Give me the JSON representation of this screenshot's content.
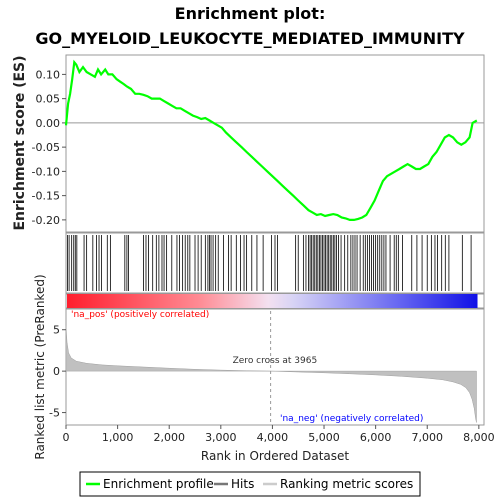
{
  "title_line1": "Enrichment plot:",
  "title_line2": "GO_MYELOID_LEUKOCYTE_MEDIATED_IMMUNITY",
  "chart_data": [
    {
      "type": "line",
      "name": "enrichment-profile",
      "ylabel": "Enrichment score (ES)",
      "xlim": [
        0,
        8100
      ],
      "ylim": [
        -0.225,
        0.14
      ],
      "yticks": [
        "0.10",
        "0.05",
        "0.00",
        "-0.05",
        "-0.10",
        "-0.15",
        "-0.20"
      ],
      "ytick_values": [
        0.1,
        0.05,
        0.0,
        -0.05,
        -0.1,
        -0.15,
        -0.2
      ],
      "series": [
        {
          "name": "Enrichment profile",
          "color": "#00ff00",
          "x": [
            0,
            40,
            80,
            120,
            160,
            200,
            260,
            330,
            400,
            480,
            560,
            620,
            680,
            760,
            820,
            900,
            980,
            1050,
            1120,
            1180,
            1260,
            1340,
            1420,
            1500,
            1580,
            1660,
            1740,
            1820,
            1900,
            1980,
            2060,
            2140,
            2220,
            2300,
            2380,
            2460,
            2540,
            2620,
            2700,
            2780,
            2860,
            2940,
            3020,
            3100,
            3200,
            3300,
            3400,
            3500,
            3600,
            3700,
            3800,
            3900,
            4000,
            4100,
            4200,
            4300,
            4400,
            4500,
            4600,
            4700,
            4780,
            4860,
            4940,
            5020,
            5100,
            5180,
            5260,
            5340,
            5420,
            5500,
            5580,
            5660,
            5740,
            5820,
            5900,
            5980,
            6060,
            6140,
            6220,
            6300,
            6380,
            6460,
            6540,
            6620,
            6700,
            6780,
            6860,
            6940,
            7020,
            7100,
            7180,
            7260,
            7340,
            7420,
            7500,
            7580,
            7660,
            7740,
            7820,
            7880,
            7960
          ],
          "y": [
            -0.005,
            0.04,
            0.06,
            0.09,
            0.125,
            0.12,
            0.105,
            0.115,
            0.105,
            0.1,
            0.095,
            0.11,
            0.1,
            0.11,
            0.1,
            0.1,
            0.09,
            0.085,
            0.08,
            0.075,
            0.07,
            0.06,
            0.06,
            0.058,
            0.055,
            0.05,
            0.05,
            0.05,
            0.045,
            0.04,
            0.035,
            0.03,
            0.03,
            0.025,
            0.02,
            0.015,
            0.012,
            0.008,
            0.01,
            0.005,
            0.0,
            -0.005,
            -0.01,
            -0.02,
            -0.03,
            -0.04,
            -0.05,
            -0.06,
            -0.07,
            -0.08,
            -0.09,
            -0.1,
            -0.11,
            -0.12,
            -0.13,
            -0.14,
            -0.15,
            -0.16,
            -0.17,
            -0.18,
            -0.185,
            -0.19,
            -0.188,
            -0.192,
            -0.19,
            -0.188,
            -0.19,
            -0.195,
            -0.197,
            -0.2,
            -0.2,
            -0.198,
            -0.195,
            -0.19,
            -0.175,
            -0.16,
            -0.14,
            -0.12,
            -0.11,
            -0.105,
            -0.1,
            -0.095,
            -0.09,
            -0.085,
            -0.09,
            -0.095,
            -0.095,
            -0.09,
            -0.085,
            -0.07,
            -0.06,
            -0.045,
            -0.03,
            -0.025,
            -0.03,
            -0.04,
            -0.045,
            -0.04,
            -0.03,
            0.0,
            0.005
          ]
        }
      ]
    },
    {
      "type": "area",
      "name": "ranked-metric",
      "xlabel": "Rank in Ordered Dataset",
      "ylabel": "Ranked list metric (PreRanked)",
      "xlim": [
        0,
        8100
      ],
      "ylim": [
        -6.5,
        7.5
      ],
      "xticks": [
        "0",
        "1,000",
        "2,000",
        "3,000",
        "4,000",
        "5,000",
        "6,000",
        "7,000",
        "8,000"
      ],
      "xtick_values": [
        0,
        1000,
        2000,
        3000,
        4000,
        5000,
        6000,
        7000,
        8000
      ],
      "yticks": [
        "5",
        "0",
        "-5"
      ],
      "ytick_values": [
        5,
        0,
        -5
      ],
      "zero_cross": 3965,
      "series": [
        {
          "name": "Ranking metric scores",
          "color": "#c0c0c0",
          "x": [
            0,
            20,
            50,
            100,
            200,
            400,
            700,
            1000,
            1500,
            2000,
            2500,
            3000,
            3500,
            3965,
            4500,
            5000,
            5500,
            6000,
            6500,
            7000,
            7300,
            7500,
            7650,
            7750,
            7820,
            7870,
            7910,
            7940,
            7955
          ],
          "y": [
            5.5,
            3.5,
            2.2,
            1.6,
            1.2,
            0.95,
            0.75,
            0.65,
            0.5,
            0.35,
            0.22,
            0.12,
            0.05,
            0.0,
            -0.1,
            -0.2,
            -0.32,
            -0.45,
            -0.62,
            -0.85,
            -1.05,
            -1.3,
            -1.6,
            -2.0,
            -2.6,
            -3.4,
            -4.5,
            -5.8,
            -6.2
          ]
        }
      ]
    }
  ],
  "hits": [
    30,
    60,
    110,
    150,
    180,
    210,
    350,
    400,
    520,
    590,
    640,
    690,
    800,
    860,
    1140,
    1180,
    1210,
    1500,
    1550,
    1600,
    1680,
    1750,
    1800,
    1860,
    1900,
    1950,
    2050,
    2150,
    2200,
    2260,
    2310,
    2360,
    2400,
    2500,
    2560,
    2620,
    2700,
    2750,
    2780,
    2810,
    2850,
    2900,
    2950,
    3050,
    3150,
    3200,
    3300,
    3380,
    3450,
    3500,
    3600,
    3700,
    3820,
    3980,
    4050,
    4100,
    4450,
    4500,
    4600,
    4650,
    4700,
    4730,
    4760,
    4790,
    4820,
    4850,
    4880,
    4910,
    4940,
    4970,
    5000,
    5030,
    5060,
    5090,
    5120,
    5150,
    5180,
    5210,
    5240,
    5280,
    5330,
    5400,
    5460,
    5520,
    5560,
    5600,
    5640,
    5700,
    5760,
    5800,
    5840,
    5880,
    5920,
    5960,
    6000,
    6040,
    6080,
    6120,
    6160,
    6200,
    6280,
    6360,
    6400,
    6440,
    6520,
    6700,
    6800,
    6900,
    7000,
    7080,
    7150,
    7200,
    7280,
    7350,
    7420,
    7680,
    7850
  ],
  "annotations": {
    "pos_label": "'na_pos' (positively correlated)",
    "neg_label": "'na_neg' (negatively correlated)",
    "zero_cross_label": "Zero cross at 3965"
  },
  "colors": {
    "profile": "#00ff00",
    "hits": "#000000",
    "metric": "#c0c0c0",
    "pos_text": "#ff0000",
    "neg_text": "#0000ff",
    "frame": "#999999"
  },
  "legend": {
    "profile_label": "Enrichment profile",
    "hits_label": "Hits",
    "metric_label": "Ranking metric scores"
  }
}
